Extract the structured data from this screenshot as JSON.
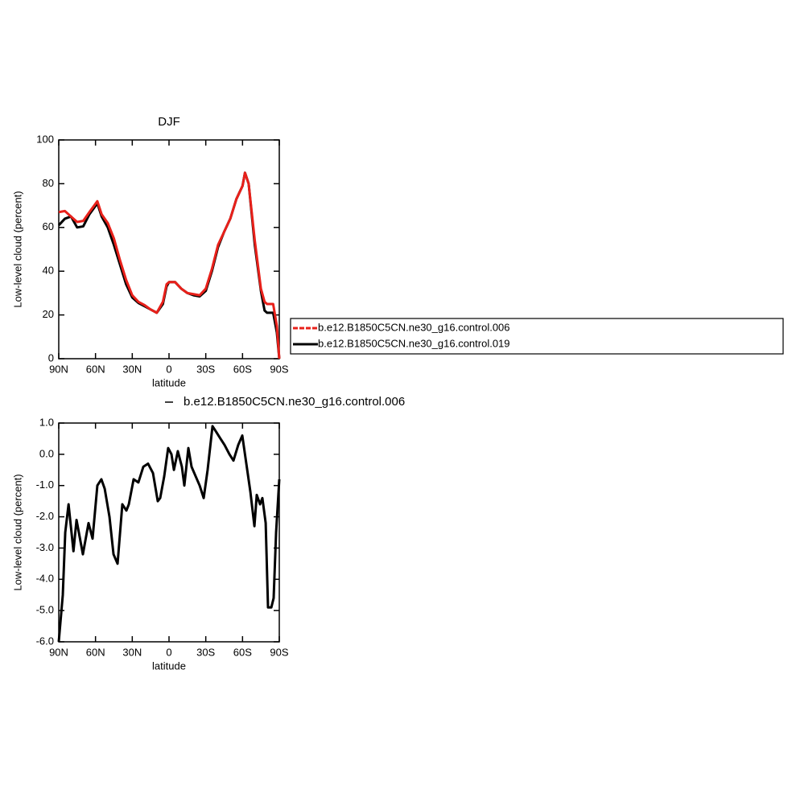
{
  "chart_data": [
    {
      "type": "line",
      "title": "DJF",
      "xlabel": "latitude",
      "ylabel": "Low-level cloud (percent)",
      "x": [
        90,
        85,
        80,
        75,
        70,
        65,
        58.5,
        55,
        50,
        45,
        40,
        35,
        30,
        25,
        20,
        15,
        10,
        5,
        2,
        0,
        -5,
        -10,
        -15,
        -20,
        -25,
        -30,
        -35,
        -40,
        -45,
        -50,
        -55,
        -60,
        -62,
        -65,
        -70,
        -75,
        -78,
        -80,
        -85,
        -88,
        -90
      ],
      "series": [
        {
          "name": "b.e12.B1850C5CN.ne30_g16.control.006",
          "color": "#e8201a",
          "values": [
            67,
            67.5,
            65,
            62.5,
            63,
            67,
            72,
            66,
            62,
            55,
            45,
            36,
            29,
            26,
            24.5,
            22.5,
            21,
            26,
            34,
            35,
            35,
            32,
            30,
            29.5,
            29,
            32,
            41,
            52,
            58,
            64,
            73,
            79,
            85,
            80,
            54,
            32,
            26,
            25,
            25,
            15,
            0
          ]
        },
        {
          "name": "b.e12.B1850C5CN.ne30_g16.control.019",
          "color": "#000000",
          "values": [
            61,
            64,
            65,
            60,
            60.5,
            66,
            71,
            65,
            60,
            52,
            43,
            34,
            28,
            25.5,
            24,
            22.5,
            21,
            25,
            33,
            35,
            35,
            32,
            30,
            29,
            28.5,
            31,
            40,
            51,
            58,
            64,
            73,
            79,
            85,
            80,
            52,
            31,
            22,
            21,
            21,
            12,
            0
          ]
        }
      ],
      "xlim": [
        90,
        -90
      ],
      "xticks": [
        {
          "value": 90,
          "label": "90N"
        },
        {
          "value": 60,
          "label": "60N"
        },
        {
          "value": 30,
          "label": "30N"
        },
        {
          "value": 0,
          "label": "0"
        },
        {
          "value": -30,
          "label": "30S"
        },
        {
          "value": -60,
          "label": "60S"
        },
        {
          "value": -90,
          "label": "90S"
        }
      ],
      "ylim": [
        0,
        100
      ],
      "yticks": [
        0,
        20,
        40,
        60,
        80,
        100
      ],
      "legend": "right"
    },
    {
      "type": "line",
      "xlabel": "latitude",
      "ylabel": "Low-level cloud (percent)",
      "x": [
        90,
        86.7,
        84.7,
        82,
        78,
        75.5,
        70.3,
        65.7,
        62.4,
        58.5,
        55.2,
        52.5,
        48.6,
        45.3,
        42,
        38.1,
        34.8,
        32.8,
        28.9,
        25,
        21,
        17.1,
        13.1,
        9.2,
        7.2,
        3.9,
        0.7,
        -2,
        -4,
        -7.2,
        -10.5,
        -12.5,
        -15.8,
        -18.4,
        -21.7,
        -25,
        -28.3,
        -31.5,
        -35.5,
        -38.8,
        -42,
        -45.3,
        -49.3,
        -52.6,
        -56.5,
        -59.8,
        -63.1,
        -66.4,
        -69.7,
        -71.6,
        -74.3,
        -76.2,
        -78.9,
        -80.8,
        -83.5,
        -85.4,
        -87.4,
        -90
      ],
      "series": [
        {
          "name": "b.e12.B1850C5CN.ne30_g16.control.006",
          "color": "#000000",
          "values": [
            -6.0,
            -4.5,
            -2.5,
            -1.6,
            -3.1,
            -2.1,
            -3.2,
            -2.2,
            -2.7,
            -1.0,
            -0.8,
            -1.1,
            -2.0,
            -3.2,
            -3.5,
            -1.6,
            -1.8,
            -1.6,
            -0.8,
            -0.9,
            -0.4,
            -0.3,
            -0.6,
            -1.5,
            -1.4,
            -0.7,
            0.2,
            0.0,
            -0.5,
            0.1,
            -0.4,
            -1.0,
            0.2,
            -0.4,
            -0.7,
            -1.0,
            -1.4,
            -0.5,
            0.9,
            0.7,
            0.5,
            0.3,
            0.0,
            -0.2,
            0.3,
            0.6,
            -0.3,
            -1.2,
            -2.3,
            -1.3,
            -1.6,
            -1.4,
            -2.2,
            -4.9,
            -4.9,
            -4.6,
            -2.5,
            -0.8
          ]
        }
      ],
      "xlim": [
        90,
        -90
      ],
      "xticks": [
        {
          "value": 90,
          "label": "90N"
        },
        {
          "value": 60,
          "label": "60N"
        },
        {
          "value": 30,
          "label": "30N"
        },
        {
          "value": 0,
          "label": "0"
        },
        {
          "value": -30,
          "label": "30S"
        },
        {
          "value": -60,
          "label": "60S"
        },
        {
          "value": -90,
          "label": "90S"
        }
      ],
      "ylim": [
        -6,
        1
      ],
      "yticks": [
        {
          "value": -6,
          "label": "-6.0"
        },
        {
          "value": -5,
          "label": "-5.0"
        },
        {
          "value": -4,
          "label": "-4.0"
        },
        {
          "value": -3,
          "label": "-3.0"
        },
        {
          "value": -2,
          "label": "-2.0"
        },
        {
          "value": -1,
          "label": "-1.0"
        },
        {
          "value": 0,
          "label": "0.0"
        },
        {
          "value": 1,
          "label": "1.0"
        }
      ],
      "legend": "top"
    }
  ]
}
